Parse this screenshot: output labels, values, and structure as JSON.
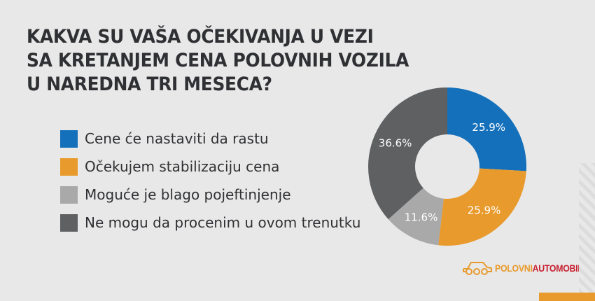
{
  "title": {
    "lines": [
      "KAKVA SU VAŠA OČEKIVANJA U VEZI",
      "SA KRETANJEM CENA POLOVNIH VOZILA",
      "U NAREDNA TRI MESECA?"
    ]
  },
  "legend": [
    {
      "label": "Cene će nastaviti da rastu",
      "color": "#1470ba"
    },
    {
      "label": "Očekujem stabilizaciju cena",
      "color": "#e89a2c"
    },
    {
      "label": "Moguće je blago pojeftinjenje",
      "color": "#a9a9a9"
    },
    {
      "label": "Ne mogu da procenim u ovom trenutku",
      "color": "#5f6062"
    }
  ],
  "logo": {
    "part1": "POLOVNI",
    "part2": "AUTOMOBILI",
    "icon": "car-icon"
  },
  "chart_data": {
    "type": "pie",
    "variant": "donut",
    "title": "KAKVA SU VAŠA OČEKIVANJA U VEZI SA KRETANJEM CENA POLOVNIH VOZILA U NAREDNA TRI MESECA?",
    "categories": [
      "Cene će nastaviti da rastu",
      "Očekujem stabilizaciju cena",
      "Moguće je blago pojeftinjenje",
      "Ne mogu da procenim u ovom trenutku"
    ],
    "values": [
      25.9,
      25.9,
      11.6,
      36.6
    ],
    "labels": [
      "25.9%",
      "25.9%",
      "11.6%",
      "36.6%"
    ],
    "colors": [
      "#1470ba",
      "#e89a2c",
      "#a9a9a9",
      "#5f6062"
    ],
    "start_angle": "12 o'clock",
    "direction": "clockwise",
    "legend_position": "left",
    "unit": "%"
  }
}
